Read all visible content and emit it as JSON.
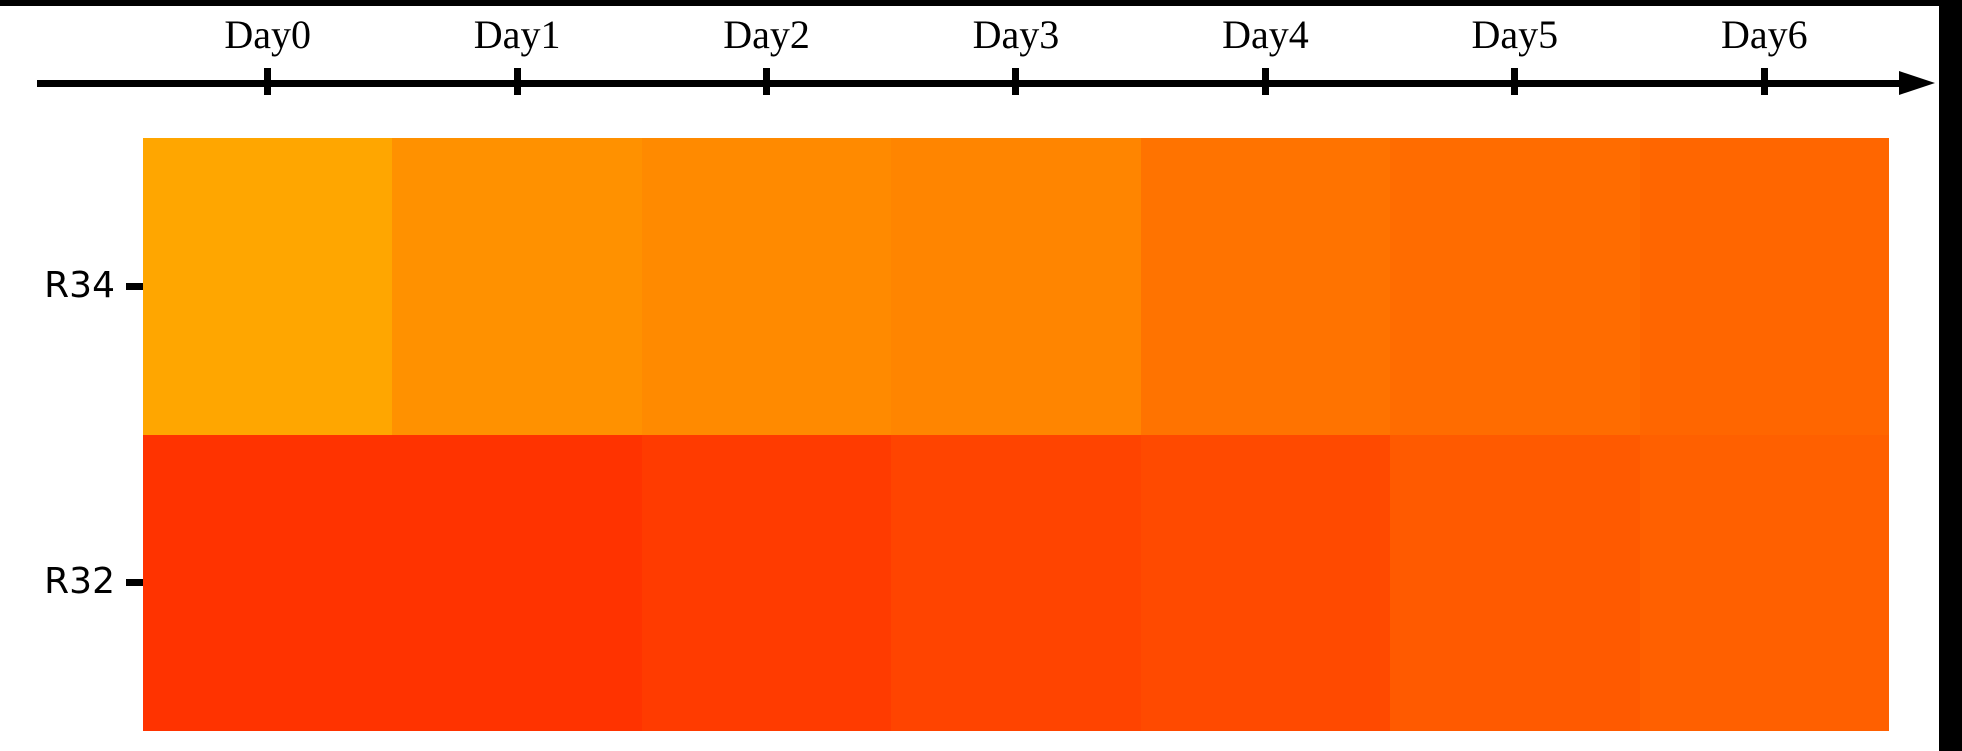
{
  "axis": {
    "tick_labels": [
      "Day0",
      "Day1",
      "Day2",
      "Day3",
      "Day4",
      "Day5",
      "Day6"
    ],
    "color": "#000000",
    "style": "horizontal arrow pointing right, ticks at each day"
  },
  "rows": [
    {
      "label": "R34"
    },
    {
      "label": "R32"
    }
  ],
  "chart_data": {
    "type": "heatmap",
    "title": "",
    "x_categories": [
      "Day0",
      "Day1",
      "Day2",
      "Day3",
      "Day4",
      "Day5",
      "Day6"
    ],
    "y_categories": [
      "R34",
      "R32"
    ],
    "colormap": "autumn (red=low G, yellow=high G; all cells rgb(255,G,0))",
    "legend": "none",
    "grid": "off",
    "cell_colors": [
      [
        "#FFA600",
        "#FF9100",
        "#FF8A00",
        "#FF8500",
        "#FF7300",
        "#FF6C00",
        "#FF6600"
      ],
      [
        "#FF3300",
        "#FF3300",
        "#FF3B00",
        "#FF4400",
        "#FF4A00",
        "#FF5A00",
        "#FF6000"
      ]
    ],
    "estimated_intensity_0_1": [
      [
        0.65,
        0.57,
        0.54,
        0.52,
        0.45,
        0.42,
        0.4
      ],
      [
        0.2,
        0.2,
        0.23,
        0.27,
        0.29,
        0.35,
        0.38
      ]
    ]
  },
  "layout_colors": {
    "background": "#ffffff",
    "letterbox": "#000000"
  }
}
